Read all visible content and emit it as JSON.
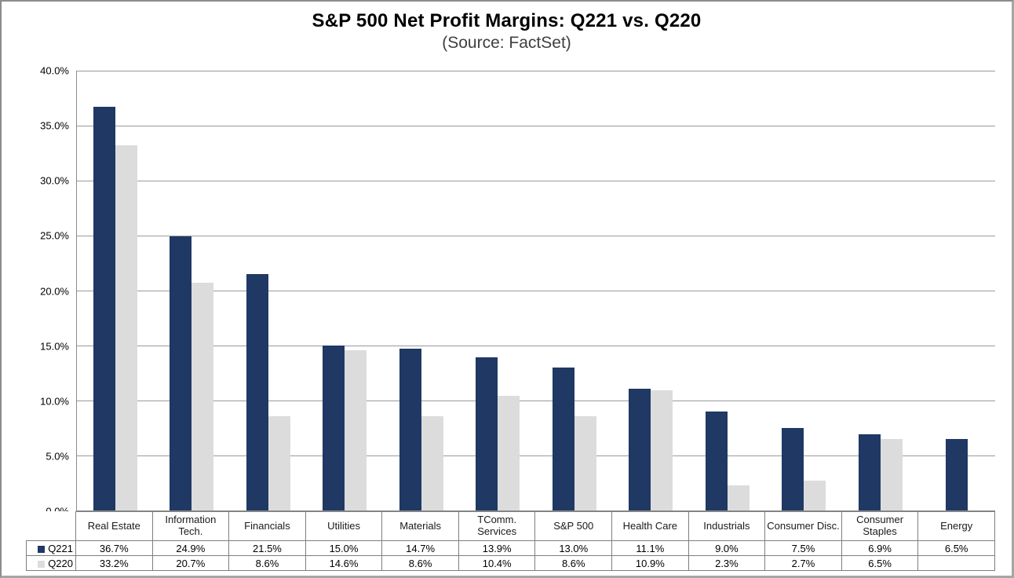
{
  "chart_data": {
    "type": "bar",
    "title": "S&P 500 Net Profit Margins: Q221 vs. Q220",
    "subtitle": "(Source: FactSet)",
    "categories": [
      "Real Estate",
      "Information Tech.",
      "Financials",
      "Utilities",
      "Materials",
      "TComm. Services",
      "S&P 500",
      "Health Care",
      "Industrials",
      "Consumer Disc.",
      "Consumer Staples",
      "Energy"
    ],
    "series": [
      {
        "name": "Q221",
        "color": "#1F3864",
        "values": [
          36.7,
          24.9,
          21.5,
          15.0,
          14.7,
          13.9,
          13.0,
          11.1,
          9.0,
          7.5,
          6.9,
          6.5
        ]
      },
      {
        "name": "Q220",
        "color": "#DCDCDC",
        "values": [
          33.2,
          20.7,
          8.6,
          14.6,
          8.6,
          10.4,
          8.6,
          10.9,
          2.3,
          2.7,
          6.5,
          null
        ]
      }
    ],
    "ylim": [
      0,
      40
    ],
    "ytick_step": 5,
    "yticks": [
      "40.0%",
      "35.0%",
      "30.0%",
      "25.0%",
      "20.0%",
      "15.0%",
      "10.0%",
      "5.0%",
      "0.0%"
    ],
    "value_format": "percent_one_decimal",
    "grid": true,
    "gridline_color": "#9a9a9a",
    "legend_position": "table-left",
    "legend_labels": [
      "Q221",
      "Q220"
    ],
    "table_shown": true
  }
}
